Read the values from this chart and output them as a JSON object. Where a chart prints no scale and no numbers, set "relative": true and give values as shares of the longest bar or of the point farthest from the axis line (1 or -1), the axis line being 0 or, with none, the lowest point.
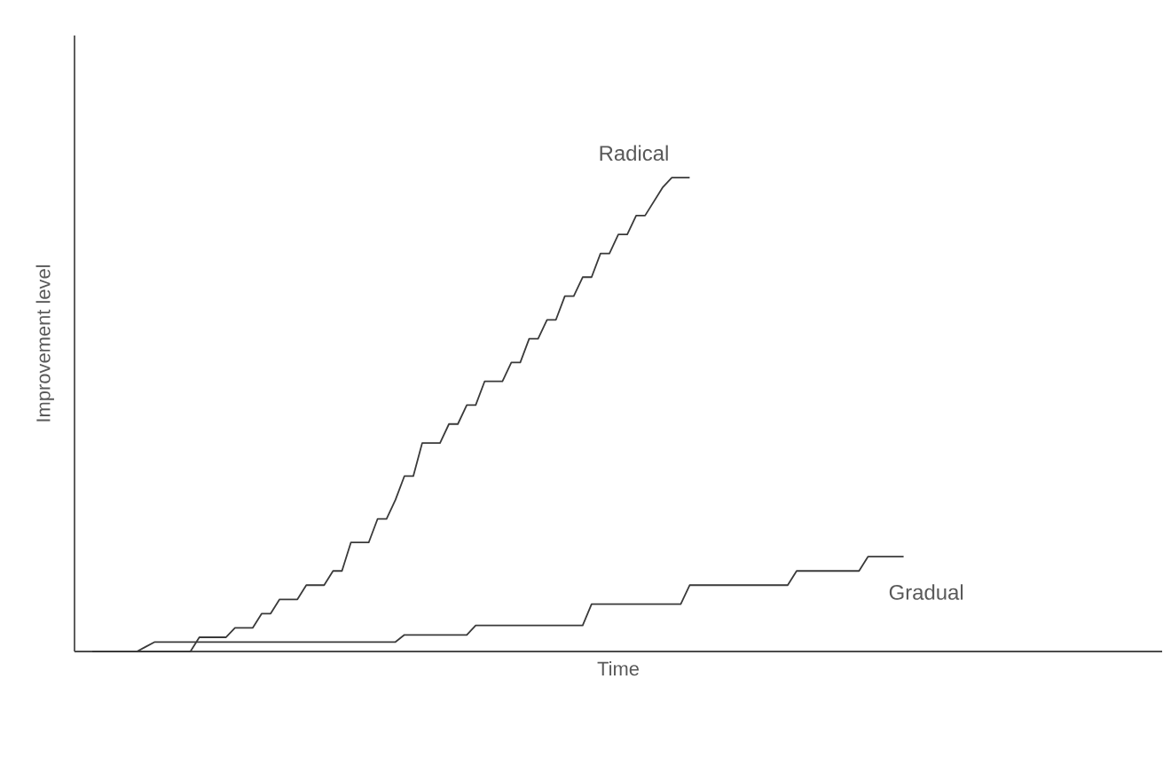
{
  "chart_data": {
    "type": "line",
    "relative": true,
    "xlabel": "Time",
    "ylabel": "Improvement level",
    "legend": false,
    "marker": "none",
    "line_style": "solid",
    "categories": [
      null,
      null,
      null,
      null,
      null,
      null,
      null,
      null,
      null,
      null,
      null,
      null,
      null,
      null,
      null,
      null,
      null,
      null,
      null,
      null,
      null,
      null,
      null,
      null,
      null,
      null,
      null,
      null,
      null,
      null,
      null,
      null,
      null,
      null,
      null,
      null,
      null,
      null,
      null,
      null,
      null,
      null,
      null,
      null,
      null,
      null,
      null,
      null,
      null,
      null,
      null,
      null,
      null,
      null,
      null,
      null,
      null,
      null,
      null,
      null,
      null,
      null,
      null,
      null,
      null,
      null,
      null,
      null,
      null,
      null,
      null,
      null,
      null,
      null,
      null,
      null,
      null,
      null,
      null,
      null,
      null,
      null,
      null,
      null,
      null,
      null,
      null,
      null,
      null,
      null,
      null,
      null,
      null,
      null,
      null,
      null,
      null,
      null,
      null,
      null,
      null,
      null,
      null,
      null,
      null,
      null,
      null,
      null,
      null,
      null,
      null,
      null,
      null,
      null,
      null,
      null,
      null,
      null,
      null,
      null,
      null,
      null,
      null
    ],
    "series": [
      {
        "name": "Radical",
        "color": "#3a3a3a",
        "values": [
          null,
          null,
          0,
          0,
          0,
          0,
          0,
          0,
          0,
          0,
          0,
          0,
          0,
          0,
          0.03,
          0.03,
          0.03,
          0.03,
          0.05,
          0.05,
          0.05,
          0.08,
          0.08,
          0.11,
          0.11,
          0.11,
          0.14,
          0.14,
          0.14,
          0.17,
          0.17,
          0.23,
          0.23,
          0.23,
          0.28,
          0.28,
          0.32,
          0.37,
          0.37,
          0.44,
          0.44,
          0.44,
          0.48,
          0.48,
          0.52,
          0.52,
          0.57,
          0.57,
          0.57,
          0.61,
          0.61,
          0.66,
          0.66,
          0.7,
          0.7,
          0.75,
          0.75,
          0.79,
          0.79,
          0.84,
          0.84,
          0.88,
          0.88,
          0.92,
          0.92,
          0.95,
          0.98,
          1,
          1,
          1,
          null,
          null,
          null,
          null,
          null,
          null,
          null,
          null,
          null,
          null,
          null,
          null,
          null,
          null,
          null,
          null,
          null,
          null,
          null,
          null,
          null,
          null,
          null,
          null,
          null,
          null,
          null,
          null,
          null,
          null,
          null,
          null,
          null,
          null,
          null,
          null,
          null,
          null,
          null,
          null,
          null,
          null,
          null,
          null,
          null,
          null,
          null,
          null,
          null,
          null,
          null,
          null,
          null
        ]
      },
      {
        "name": "Gradual",
        "color": "#3a3a3a",
        "values": [
          null,
          null,
          null,
          null,
          null,
          null,
          null,
          0,
          0.01,
          0.02,
          0.02,
          0.02,
          0.02,
          0.02,
          0.02,
          0.02,
          0.02,
          0.02,
          0.02,
          0.02,
          0.02,
          0.02,
          0.02,
          0.02,
          0.02,
          0.02,
          0.02,
          0.02,
          0.02,
          0.02,
          0.02,
          0.02,
          0.02,
          0.02,
          0.02,
          0.02,
          0.02,
          0.035,
          0.035,
          0.035,
          0.035,
          0.035,
          0.035,
          0.035,
          0.035,
          0.055,
          0.055,
          0.055,
          0.055,
          0.055,
          0.055,
          0.055,
          0.055,
          0.055,
          0.055,
          0.055,
          0.055,
          0.055,
          0.1,
          0.1,
          0.1,
          0.1,
          0.1,
          0.1,
          0.1,
          0.1,
          0.1,
          0.1,
          0.1,
          0.14,
          0.14,
          0.14,
          0.14,
          0.14,
          0.14,
          0.14,
          0.14,
          0.14,
          0.14,
          0.14,
          0.14,
          0.17,
          0.17,
          0.17,
          0.17,
          0.17,
          0.17,
          0.17,
          0.17,
          0.2,
          0.2,
          0.2,
          0.2,
          0.2,
          null,
          null,
          null,
          null,
          null,
          null,
          null,
          null,
          null,
          null,
          null,
          null,
          null,
          null,
          null,
          null,
          null,
          null,
          null,
          null,
          null,
          null,
          null,
          null,
          null,
          null,
          null,
          null,
          null
        ]
      }
    ]
  }
}
